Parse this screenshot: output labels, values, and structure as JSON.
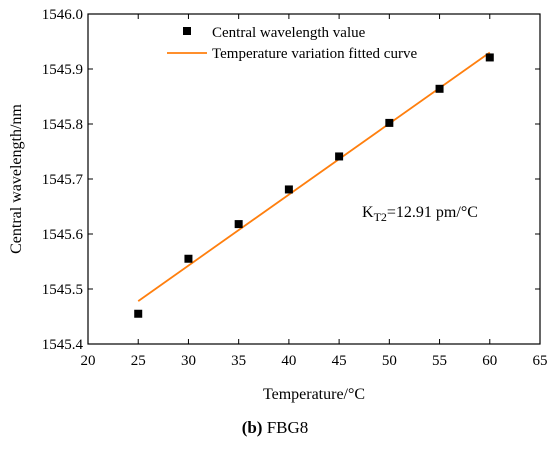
{
  "chart_data": {
    "type": "scatter",
    "title": "",
    "xlabel": "Temperature/°C",
    "ylabel": "Central wavelength/nm",
    "xlim": [
      20,
      65
    ],
    "ylim": [
      1545.4,
      1546.0
    ],
    "xticks": [
      20,
      25,
      30,
      35,
      40,
      45,
      50,
      55,
      60,
      65
    ],
    "yticks": [
      1545.4,
      1545.5,
      1545.6,
      1545.7,
      1545.8,
      1545.9,
      1546.0
    ],
    "ytick_labels": [
      "1545.4",
      "1545.5",
      "1545.6",
      "1545.7",
      "1545.8",
      "1545.9",
      "1546.0"
    ],
    "grid": false,
    "legend_position": "top-left",
    "series": [
      {
        "name": "Central wavelength value",
        "kind": "scatter",
        "marker": "square",
        "color": "#000000",
        "x": [
          25,
          30,
          35,
          40,
          45,
          50,
          55,
          60
        ],
        "y": [
          1545.455,
          1545.555,
          1545.618,
          1545.681,
          1545.741,
          1545.802,
          1545.864,
          1545.921
        ]
      },
      {
        "name": "Temperature variation fitted curve",
        "kind": "line",
        "color": "#ff7f0e",
        "x": [
          25,
          60
        ],
        "y": [
          1545.478,
          1545.93
        ]
      }
    ],
    "annotation": {
      "prefix": "K",
      "subscript": "T2",
      "suffix": "=12.91 pm/°C",
      "x": 50,
      "y": 1545.64
    }
  },
  "caption": {
    "label": "(b)",
    "text": "FBG8"
  }
}
